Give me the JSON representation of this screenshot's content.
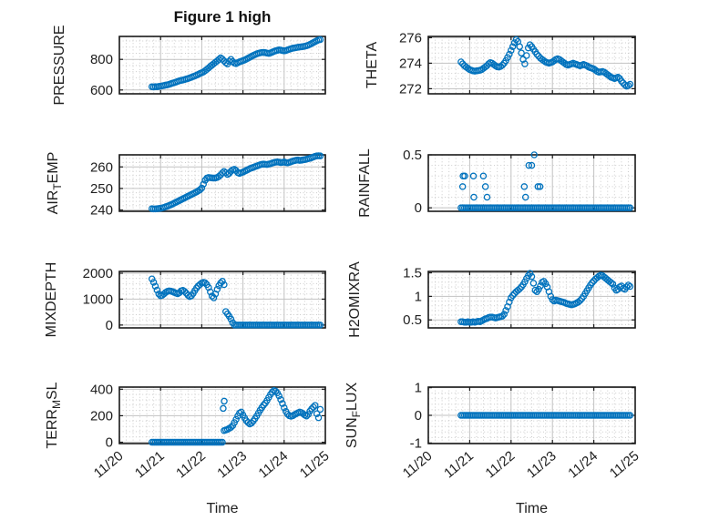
{
  "figure": {
    "title": "Figure 1 high",
    "xlabel": "Time",
    "marker_color": "#0072BD",
    "axes_color": "#1a1a1a",
    "major_grid_color": "#c2c2c2",
    "minor_grid_color": "#cccccc",
    "background": "#ffffff",
    "x_tick_labels": [
      "11/20",
      "11/21",
      "11/22",
      "11/23",
      "11/24",
      "11/25"
    ],
    "x_tick_values": [
      0,
      1,
      2,
      3,
      4,
      5
    ]
  },
  "chart_data": [
    {
      "id": "pressure",
      "type": "scatter",
      "row": 0,
      "col": 0,
      "ylabel": "PRESSURE",
      "ylabel_parts": [
        {
          "text": "PRESSURE"
        }
      ],
      "xlim": [
        0,
        5
      ],
      "x_minor_step": 0.16667,
      "show_x_labels": false,
      "ylim": [
        575,
        950
      ],
      "ytick_values": [
        600,
        800
      ],
      "ytick_labels": [
        "600",
        "800"
      ],
      "y_minor_step": 40,
      "x_start": 0.79,
      "x_step": 0.0417,
      "values": [
        621,
        620,
        622,
        621,
        623,
        625,
        627,
        629,
        632,
        634,
        637,
        641,
        645,
        648,
        652,
        656,
        660,
        663,
        665,
        668,
        672,
        675,
        679,
        683,
        688,
        692,
        697,
        702,
        708,
        713,
        718,
        726,
        735,
        744,
        754,
        763,
        772,
        781,
        790,
        800,
        810,
        802,
        790,
        778,
        770,
        788,
        800,
        786,
        776,
        772,
        778,
        784,
        788,
        792,
        796,
        802,
        808,
        814,
        820,
        826,
        831,
        836,
        840,
        843,
        845,
        846,
        844,
        841,
        839,
        842,
        847,
        852,
        856,
        859,
        862,
        861,
        858,
        856,
        858,
        862,
        866,
        870,
        873,
        875,
        877,
        879,
        881,
        882,
        884,
        886,
        889,
        893,
        898,
        904,
        910,
        916,
        922,
        927,
        929
      ],
      "points": []
    },
    {
      "id": "theta",
      "type": "scatter",
      "row": 0,
      "col": 1,
      "ylabel": "THETA",
      "ylabel_parts": [
        {
          "text": "THETA"
        }
      ],
      "xlim": [
        0,
        5
      ],
      "x_minor_step": 0.16667,
      "show_x_labels": false,
      "ylim": [
        271.6,
        276.1
      ],
      "ytick_values": [
        272,
        274,
        276
      ],
      "ytick_labels": [
        "272",
        "274",
        "276"
      ],
      "y_minor_step": 0.4,
      "x_start": 0.79,
      "x_step": 0.0417,
      "values": [
        274.1,
        273.95,
        273.8,
        273.7,
        273.6,
        273.5,
        273.45,
        273.4,
        273.38,
        273.4,
        273.42,
        273.45,
        273.5,
        273.6,
        273.7,
        273.8,
        273.95,
        274.05,
        274.0,
        273.9,
        273.8,
        273.72,
        273.7,
        273.75,
        273.85,
        274.0,
        274.2,
        274.45,
        274.7,
        275.0,
        275.3,
        275.6,
        275.85,
        275.7,
        275.3,
        274.8,
        274.3,
        273.95,
        274.6,
        275.2,
        275.45,
        275.3,
        275.1,
        274.9,
        274.7,
        274.55,
        274.4,
        274.3,
        274.2,
        274.1,
        274.05,
        274.0,
        274.05,
        274.1,
        274.2,
        274.3,
        274.35,
        274.3,
        274.2,
        274.1,
        274.0,
        273.9,
        273.85,
        273.9,
        273.95,
        274.0,
        273.95,
        273.9,
        273.85,
        273.8,
        273.85,
        273.9,
        273.85,
        273.8,
        273.7,
        273.65,
        273.6,
        273.55,
        273.45,
        273.35,
        273.3,
        273.32,
        273.35,
        273.3,
        273.2,
        273.1,
        273.0,
        272.9,
        272.85,
        272.8,
        272.85,
        272.9,
        272.8,
        272.6,
        272.45,
        272.3,
        272.2,
        272.25,
        272.35
      ],
      "points": []
    },
    {
      "id": "airtemp",
      "type": "scatter",
      "row": 1,
      "col": 0,
      "ylabel": "AIR_TEMP",
      "ylabel_parts": [
        {
          "text": "AIR"
        },
        {
          "text": "T",
          "sub": true
        },
        {
          "text": "EMP"
        }
      ],
      "xlim": [
        0,
        5
      ],
      "x_minor_step": 0.16667,
      "show_x_labels": false,
      "ylim": [
        239.4,
        265.6
      ],
      "ytick_values": [
        240,
        250,
        260
      ],
      "ytick_labels": [
        "240",
        "250",
        "260"
      ],
      "y_minor_step": 2,
      "x_start": 0.79,
      "x_step": 0.0417,
      "values": [
        240.6,
        240.5,
        240.5,
        240.6,
        240.7,
        240.8,
        241.0,
        241.2,
        241.5,
        241.8,
        242.1,
        242.4,
        242.8,
        243.2,
        243.6,
        244.0,
        244.4,
        244.8,
        245.2,
        245.6,
        246.0,
        246.4,
        246.8,
        247.2,
        247.6,
        248.0,
        248.4,
        248.9,
        249.4,
        250.2,
        252.0,
        253.8,
        254.8,
        255.1,
        255.0,
        254.9,
        254.8,
        254.9,
        255.1,
        255.6,
        256.3,
        257.2,
        257.9,
        257.3,
        256.5,
        257.0,
        258.0,
        258.6,
        258.9,
        258.3,
        257.3,
        257.0,
        257.3,
        257.6,
        258.0,
        258.4,
        258.8,
        259.2,
        259.5,
        259.8,
        260.1,
        260.4,
        260.7,
        261.0,
        261.2,
        261.3,
        261.2,
        261.1,
        261.3,
        261.5,
        261.8,
        262.0,
        262.2,
        262.3,
        262.2,
        262.0,
        262.1,
        262.3,
        262.0,
        261.9,
        262.1,
        262.4,
        262.7,
        262.9,
        263.1,
        263.2,
        263.0,
        263.1,
        263.3,
        263.4,
        263.6,
        263.8,
        264.0,
        264.3,
        264.6,
        264.9,
        265.1,
        265.2,
        265.1
      ],
      "points": []
    },
    {
      "id": "rainfall",
      "type": "scatter",
      "row": 1,
      "col": 1,
      "ylabel": "RAINFALL",
      "ylabel_parts": [
        {
          "text": "RAINFALL"
        }
      ],
      "xlim": [
        0,
        5
      ],
      "x_minor_step": 0.16667,
      "show_x_labels": false,
      "ylim": [
        -0.033,
        0.5
      ],
      "ytick_values": [
        0,
        0.5
      ],
      "ytick_labels": [
        "0",
        "0.5"
      ],
      "y_minor_step": 0.1,
      "x_start": 0.79,
      "x_step": 0.0417,
      "values": [
        0,
        0,
        0,
        0,
        0,
        0,
        0,
        0,
        0,
        0,
        0,
        0,
        0,
        0,
        0,
        0,
        0,
        0,
        0,
        0,
        0,
        0,
        0,
        0,
        0,
        0,
        0,
        0,
        0,
        0,
        0,
        0,
        0,
        0,
        0,
        0,
        0,
        0,
        0,
        0,
        0,
        0,
        0,
        0,
        0,
        0,
        0,
        0,
        0,
        0,
        0,
        0,
        0,
        0,
        0,
        0,
        0,
        0,
        0,
        0,
        0,
        0,
        0,
        0,
        0,
        0,
        0,
        0,
        0,
        0,
        0,
        0,
        0,
        0,
        0,
        0,
        0,
        0,
        0,
        0,
        0,
        0,
        0,
        0,
        0,
        0,
        0,
        0,
        0,
        0,
        0,
        0,
        0,
        0,
        0,
        0,
        0,
        0,
        0
      ],
      "points": [
        [
          0.83,
          0.2
        ],
        [
          0.84,
          0.3
        ],
        [
          0.88,
          0.3
        ],
        [
          1.09,
          0.3
        ],
        [
          1.1,
          0.1
        ],
        [
          1.33,
          0.3
        ],
        [
          1.38,
          0.2
        ],
        [
          1.42,
          0.1
        ],
        [
          2.32,
          0.2
        ],
        [
          2.35,
          0.1
        ],
        [
          2.43,
          0.4
        ],
        [
          2.5,
          0.4
        ],
        [
          2.56,
          0.5
        ],
        [
          2.65,
          0.2
        ],
        [
          2.7,
          0.2
        ]
      ]
    },
    {
      "id": "mixdepth",
      "type": "scatter",
      "row": 2,
      "col": 0,
      "ylabel": "MIXDEPTH",
      "ylabel_parts": [
        {
          "text": "MIXDEPTH"
        }
      ],
      "xlim": [
        0,
        5
      ],
      "x_minor_step": 0.16667,
      "show_x_labels": false,
      "ylim": [
        -110,
        2070
      ],
      "ytick_values": [
        0,
        1000,
        2000
      ],
      "ytick_labels": [
        "0",
        "1000",
        "2000"
      ],
      "y_minor_step": 200,
      "x_start": 0.79,
      "x_step": 0.0417,
      "values": [
        1780,
        1650,
        1500,
        1350,
        1200,
        1130,
        1150,
        1200,
        1260,
        1300,
        1320,
        1310,
        1290,
        1260,
        1230,
        1210,
        1250,
        1320,
        1340,
        1300,
        1230,
        1150,
        1100,
        1130,
        1220,
        1330,
        1430,
        1510,
        1570,
        1620,
        1650,
        1630,
        1560,
        1450,
        1280,
        1120,
        1050,
        1200,
        1380,
        1520,
        1620,
        1690,
        1560,
        520,
        430,
        340,
        230,
        90,
        0,
        0,
        0,
        0,
        0,
        0,
        0,
        0,
        0,
        0,
        0,
        0,
        0,
        0,
        0,
        0,
        0,
        0,
        0,
        0,
        0,
        0,
        0,
        0,
        0,
        0,
        0,
        0,
        0,
        0,
        0,
        0,
        0,
        0,
        0,
        0,
        0,
        0,
        0,
        0,
        0,
        0,
        0,
        0,
        0,
        0,
        0,
        0,
        0,
        0,
        0
      ],
      "points": []
    },
    {
      "id": "h2omixra",
      "type": "scatter",
      "row": 2,
      "col": 1,
      "ylabel": "H2OMIXRA",
      "ylabel_parts": [
        {
          "text": "H2OMIXRA"
        }
      ],
      "xlim": [
        0,
        5
      ],
      "x_minor_step": 0.16667,
      "show_x_labels": false,
      "ylim": [
        0.33,
        1.53
      ],
      "ytick_values": [
        0.5,
        1,
        1.5
      ],
      "ytick_labels": [
        "0.5",
        "1",
        "1.5"
      ],
      "y_minor_step": 0.1,
      "x_start": 0.79,
      "x_step": 0.0417,
      "values": [
        0.46,
        0.46,
        0.45,
        0.45,
        0.46,
        0.45,
        0.45,
        0.46,
        0.45,
        0.46,
        0.47,
        0.46,
        0.48,
        0.5,
        0.52,
        0.53,
        0.55,
        0.56,
        0.56,
        0.55,
        0.54,
        0.55,
        0.56,
        0.57,
        0.58,
        0.62,
        0.7,
        0.78,
        0.88,
        0.97,
        1.02,
        1.06,
        1.1,
        1.13,
        1.16,
        1.2,
        1.25,
        1.31,
        1.38,
        1.44,
        1.49,
        1.42,
        1.28,
        1.13,
        1.1,
        1.15,
        1.22,
        1.3,
        1.32,
        1.27,
        1.2,
        1.1,
        1.0,
        0.93,
        0.9,
        0.92,
        0.91,
        0.9,
        0.89,
        0.88,
        0.87,
        0.85,
        0.84,
        0.83,
        0.82,
        0.83,
        0.84,
        0.86,
        0.88,
        0.91,
        0.95,
        1.0,
        1.06,
        1.12,
        1.18,
        1.24,
        1.29,
        1.33,
        1.37,
        1.4,
        1.43,
        1.45,
        1.44,
        1.41,
        1.38,
        1.35,
        1.32,
        1.29,
        1.26,
        1.18,
        1.13,
        1.15,
        1.2,
        1.22,
        1.17,
        1.15,
        1.2,
        1.24,
        1.21
      ],
      "points": []
    },
    {
      "id": "terrmsl",
      "type": "scatter",
      "row": 3,
      "col": 0,
      "ylabel": "TERR_MSL",
      "ylabel_parts": [
        {
          "text": "TERR"
        },
        {
          "text": "M",
          "sub": true
        },
        {
          "text": "SL"
        }
      ],
      "xlim": [
        0,
        5
      ],
      "x_minor_step": 0.16667,
      "show_x_labels": true,
      "ylim": [
        -10,
        416
      ],
      "ytick_values": [
        0,
        200,
        400
      ],
      "ytick_labels": [
        "0",
        "200",
        "400"
      ],
      "y_minor_step": 40,
      "x_start": 0.79,
      "x_step": 0.0417,
      "values": [
        0,
        0,
        0,
        0,
        0,
        0,
        0,
        0,
        0,
        0,
        0,
        0,
        0,
        0,
        0,
        0,
        0,
        0,
        0,
        0,
        0,
        0,
        0,
        0,
        0,
        0,
        0,
        0,
        0,
        0,
        0,
        0,
        0,
        0,
        0,
        0,
        0,
        0,
        0,
        0,
        0,
        0,
        88,
        92,
        97,
        105,
        112,
        125,
        148,
        172,
        198,
        220,
        228,
        205,
        182,
        162,
        148,
        138,
        145,
        160,
        178,
        198,
        220,
        242,
        262,
        280,
        295,
        315,
        338,
        360,
        378,
        390,
        386,
        372,
        350,
        322,
        292,
        260,
        232,
        212,
        200,
        196,
        200,
        208,
        215,
        222,
        228,
        224,
        215,
        205,
        198,
        210,
        235,
        252,
        265,
        278,
        215,
        185,
        248
      ],
      "points": [
        [
          2.52,
          255
        ],
        [
          2.545,
          310
        ]
      ]
    },
    {
      "id": "sunflux",
      "type": "scatter",
      "row": 3,
      "col": 1,
      "ylabel": "SUN_FLUX",
      "ylabel_parts": [
        {
          "text": "SUN"
        },
        {
          "text": "F",
          "sub": true
        },
        {
          "text": "LUX"
        }
      ],
      "xlim": [
        0,
        5
      ],
      "x_minor_step": 0.16667,
      "show_x_labels": true,
      "ylim": [
        -1.02,
        1.02
      ],
      "ytick_values": [
        -1,
        0,
        1
      ],
      "ytick_labels": [
        "-1",
        "0",
        "1"
      ],
      "y_minor_step": 0.2,
      "x_start": 0.79,
      "x_step": 0.0417,
      "values": [
        0,
        0,
        0,
        0,
        0,
        0,
        0,
        0,
        0,
        0,
        0,
        0,
        0,
        0,
        0,
        0,
        0,
        0,
        0,
        0,
        0,
        0,
        0,
        0,
        0,
        0,
        0,
        0,
        0,
        0,
        0,
        0,
        0,
        0,
        0,
        0,
        0,
        0,
        0,
        0,
        0,
        0,
        0,
        0,
        0,
        0,
        0,
        0,
        0,
        0,
        0,
        0,
        0,
        0,
        0,
        0,
        0,
        0,
        0,
        0,
        0,
        0,
        0,
        0,
        0,
        0,
        0,
        0,
        0,
        0,
        0,
        0,
        0,
        0,
        0,
        0,
        0,
        0,
        0,
        0,
        0,
        0,
        0,
        0,
        0,
        0,
        0,
        0,
        0,
        0,
        0,
        0,
        0,
        0,
        0,
        0,
        0,
        0,
        0
      ],
      "points": []
    }
  ]
}
